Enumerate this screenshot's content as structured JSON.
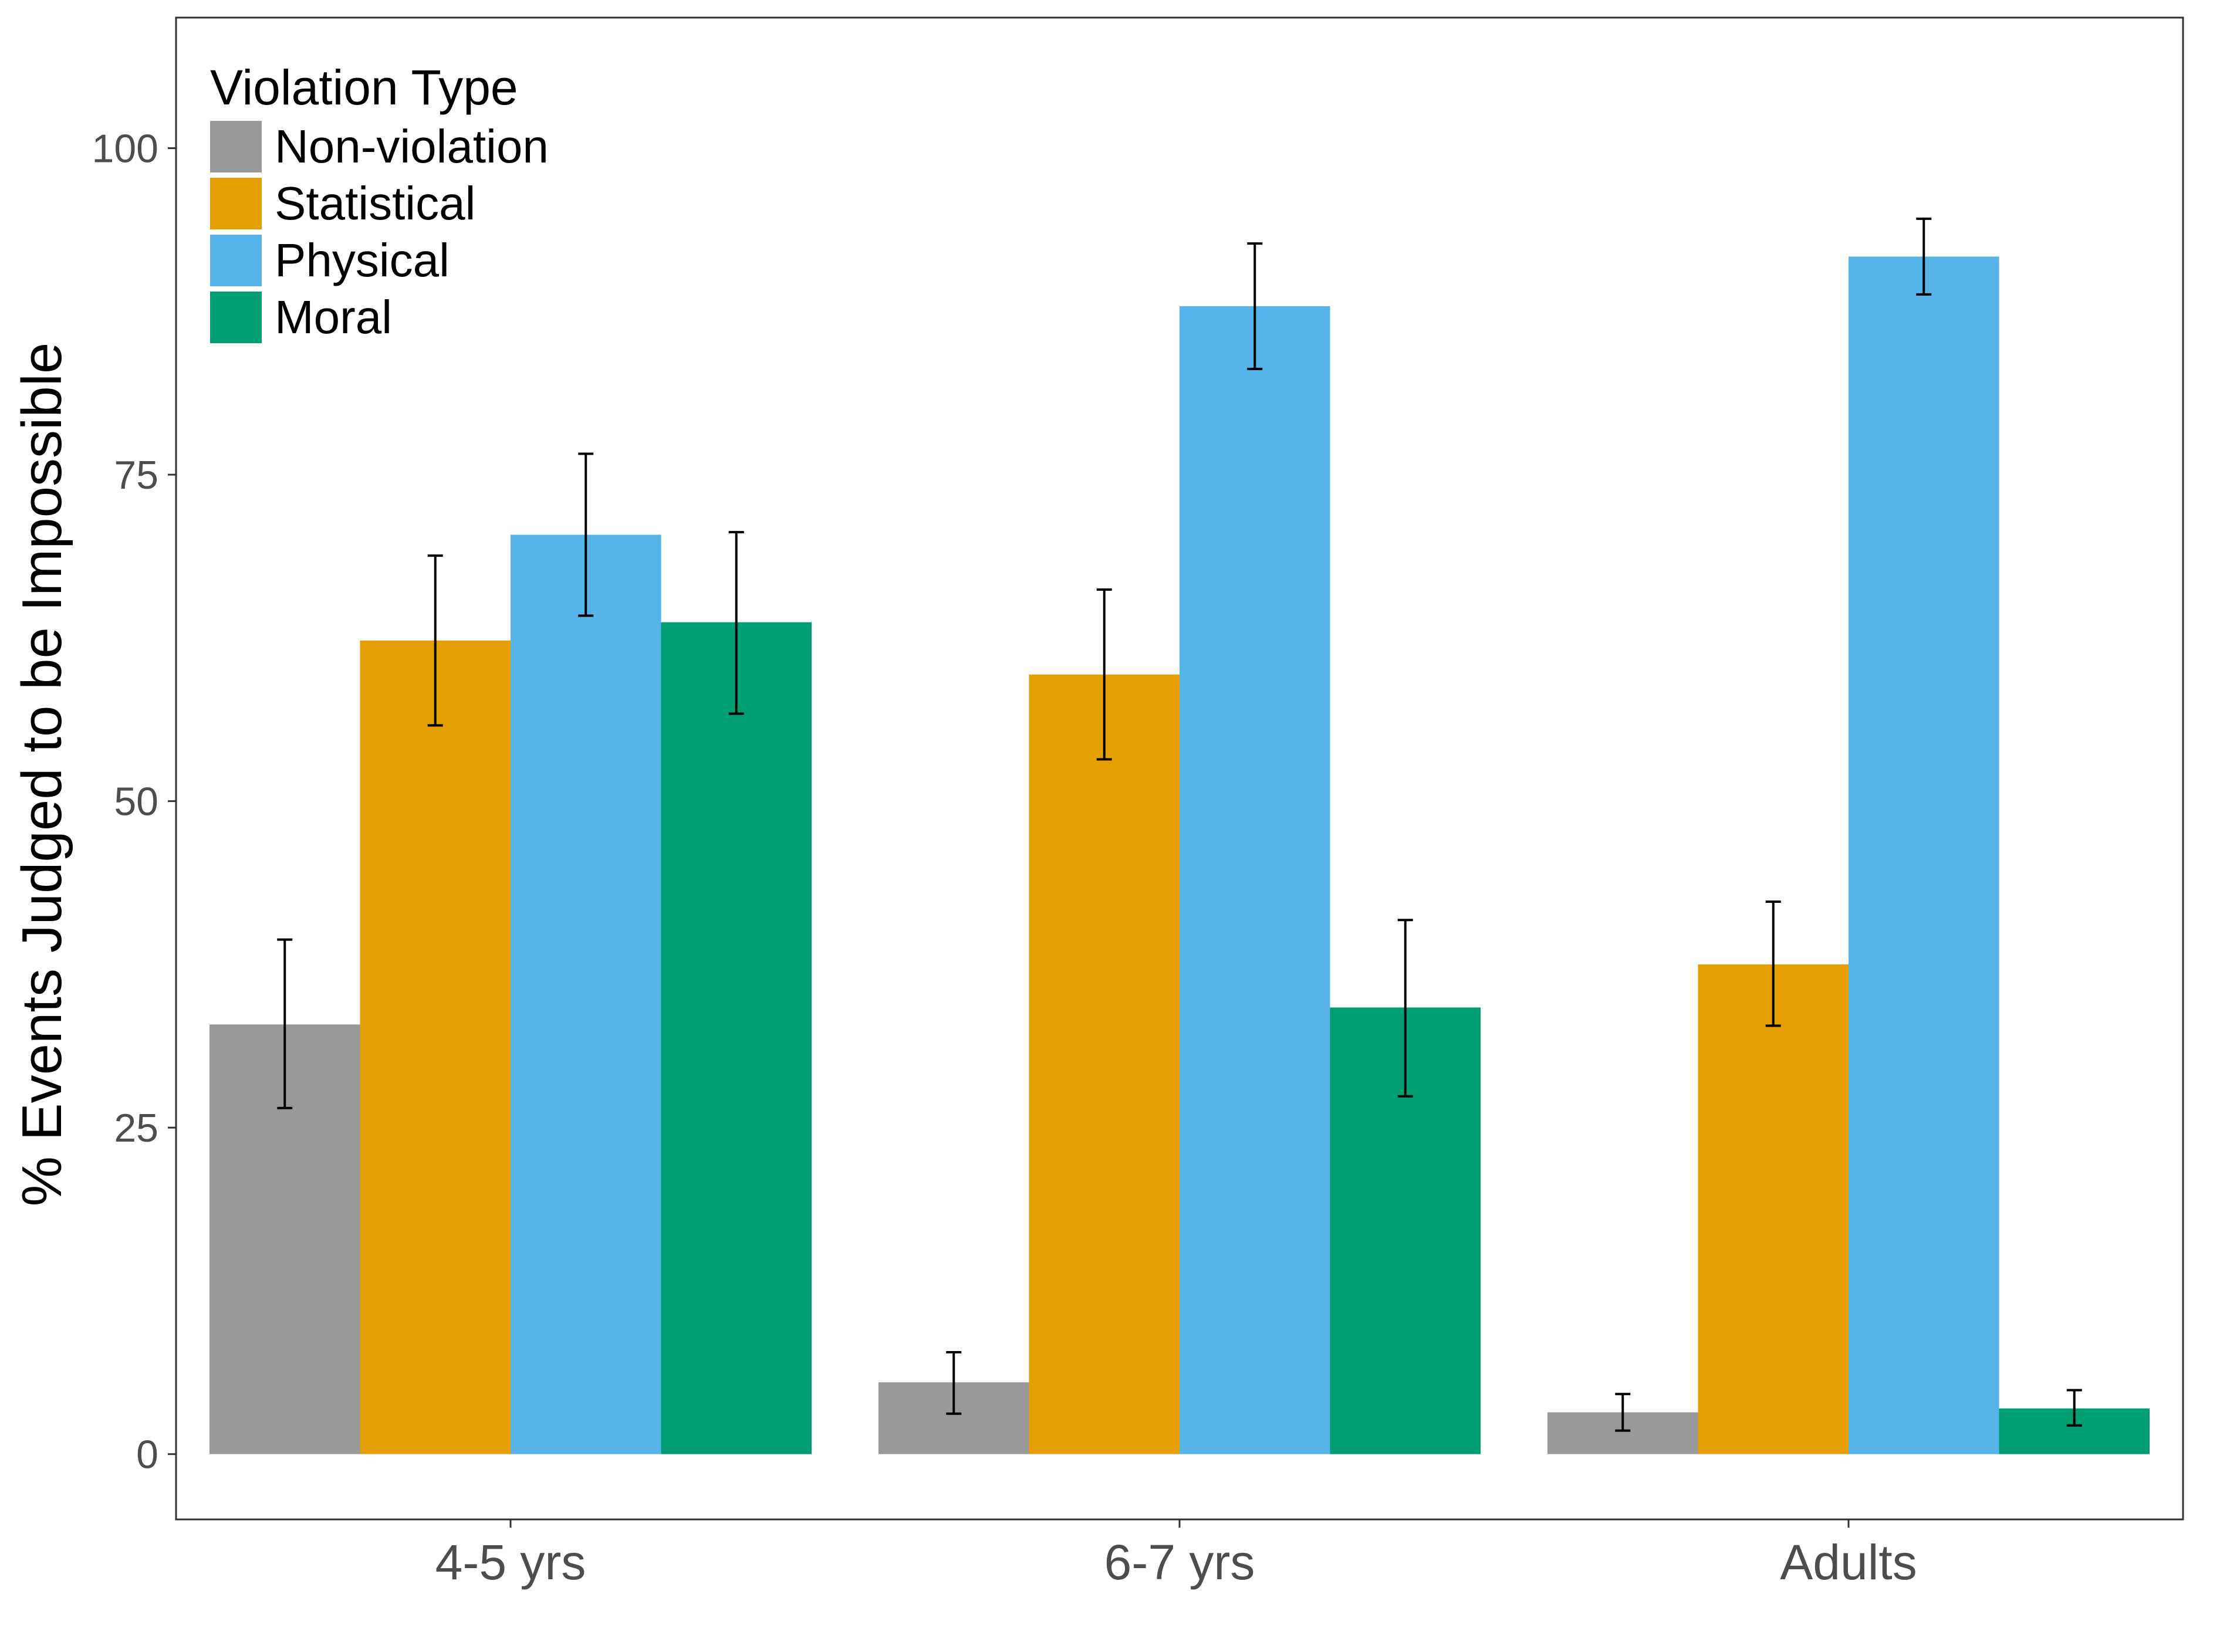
{
  "chart_data": {
    "type": "bar",
    "title": "",
    "xlabel": "",
    "ylabel": "% Events Judged to be Impossible",
    "ylim": [
      -5,
      110
    ],
    "yticks": [
      0,
      25,
      50,
      75,
      100
    ],
    "grid": false,
    "categories": [
      "4-5 yrs",
      "6-7 yrs",
      "Adults"
    ],
    "legend": {
      "title": "Violation Type",
      "position": "top-left"
    },
    "series": [
      {
        "name": "Non-violation",
        "color": "#999999",
        "values": [
          32.9,
          5.5,
          3.2
        ],
        "err_low": [
          26.5,
          3.1,
          1.8
        ],
        "err_high": [
          39.4,
          7.8,
          4.6
        ]
      },
      {
        "name": "Statistical",
        "color": "#E69F00",
        "values": [
          62.3,
          59.7,
          37.5
        ],
        "err_low": [
          55.8,
          53.2,
          32.8
        ],
        "err_high": [
          68.8,
          66.2,
          42.3
        ]
      },
      {
        "name": "Physical",
        "color": "#56B4E9",
        "values": [
          70.4,
          87.9,
          91.7
        ],
        "err_low": [
          64.2,
          83.1,
          88.8
        ],
        "err_high": [
          76.6,
          92.7,
          94.6
        ]
      },
      {
        "name": "Moral",
        "color": "#009E73",
        "values": [
          63.7,
          34.2,
          3.5
        ],
        "err_low": [
          56.7,
          27.4,
          2.2
        ],
        "err_high": [
          70.6,
          40.9,
          4.9
        ]
      }
    ]
  }
}
